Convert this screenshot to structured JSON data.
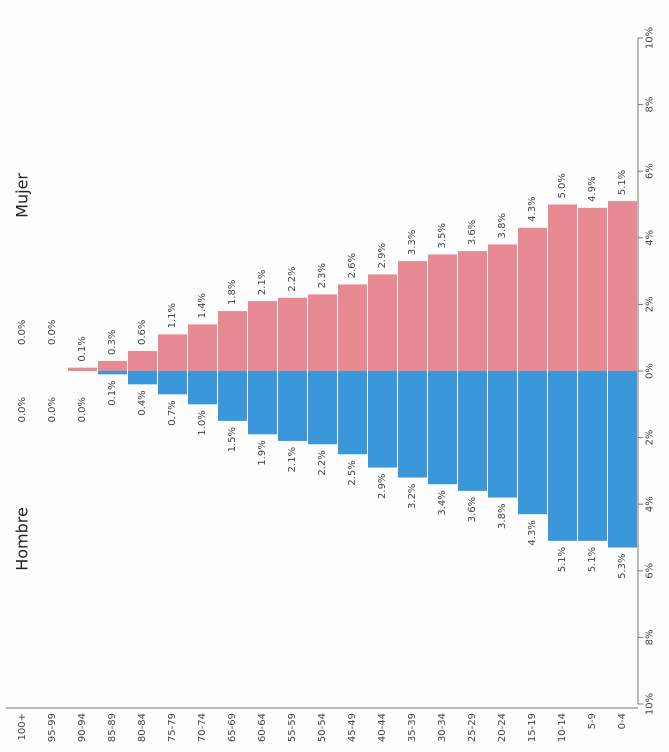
{
  "chart_data": {
    "type": "bar",
    "orientation": "population-pyramid",
    "categories": [
      "0-4",
      "5-9",
      "10-14",
      "15-19",
      "20-24",
      "25-29",
      "30-34",
      "35-39",
      "40-44",
      "45-49",
      "50-54",
      "55-59",
      "60-64",
      "65-69",
      "70-74",
      "75-79",
      "80-84",
      "85-89",
      "90-94",
      "95-99",
      "100+"
    ],
    "series": [
      {
        "name": "Hombre",
        "color": "#3a97d9",
        "values": [
          5.3,
          5.1,
          5.1,
          4.3,
          3.8,
          3.6,
          3.4,
          3.2,
          2.9,
          2.5,
          2.2,
          2.1,
          1.9,
          1.5,
          1.0,
          0.7,
          0.4,
          0.1,
          0.0,
          0.0,
          0.0
        ],
        "labels": [
          "5.3%",
          "5.1%",
          "5.1%",
          "4.3%",
          "3.8%",
          "3.6%",
          "3.4%",
          "3.2%",
          "2.9%",
          "2.5%",
          "2.2%",
          "2.1%",
          "1.9%",
          "1.5%",
          "1.0%",
          "0.7%",
          "0.4%",
          "0.1%",
          "0.0%",
          "0.0%",
          "0.0%"
        ]
      },
      {
        "name": "Mujer",
        "color": "#e88a93",
        "values": [
          5.1,
          4.9,
          5.0,
          4.3,
          3.8,
          3.6,
          3.5,
          3.3,
          2.9,
          2.6,
          2.3,
          2.2,
          2.1,
          1.8,
          1.4,
          1.1,
          0.6,
          0.3,
          0.1,
          0.0,
          0.0
        ],
        "labels": [
          "5.1%",
          "4.9%",
          "5.0%",
          "4.3%",
          "3.8%",
          "3.6%",
          "3.5%",
          "3.3%",
          "2.9%",
          "2.6%",
          "2.3%",
          "2.2%",
          "2.1%",
          "1.8%",
          "1.4%",
          "1.1%",
          "0.6%",
          "0.3%",
          "0.1%",
          "0.0%",
          "0.0%"
        ]
      }
    ],
    "value_axis": {
      "range": [
        -10,
        10
      ],
      "ticks": [
        -10,
        -8,
        -6,
        -4,
        -2,
        0,
        2,
        4,
        6,
        8,
        10
      ],
      "tick_labels": [
        "10%",
        "8%",
        "6%",
        "4%",
        "2%",
        "0%",
        "2%",
        "4%",
        "6%",
        "8%",
        "10%"
      ]
    },
    "grid": false,
    "legend_placement": "inside, each side"
  }
}
